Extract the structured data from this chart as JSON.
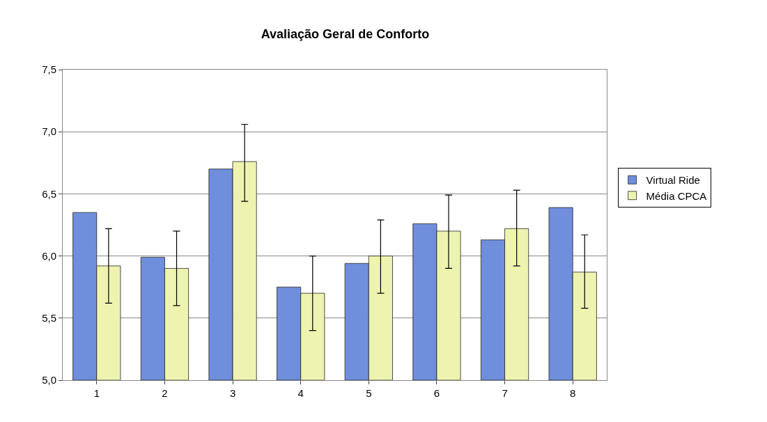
{
  "chart_data": {
    "type": "bar",
    "title": "Avaliação Geral de Conforto",
    "categories": [
      "1",
      "2",
      "3",
      "4",
      "5",
      "6",
      "7",
      "8"
    ],
    "series": [
      {
        "name": "Virtual Ride",
        "color": "#6f8fdc",
        "values": [
          6.35,
          5.99,
          6.7,
          5.75,
          5.94,
          6.26,
          6.13,
          6.39
        ]
      },
      {
        "name": "Média CPCA",
        "color": "#eef3b0",
        "values": [
          5.92,
          5.9,
          6.76,
          5.7,
          6.0,
          6.2,
          6.22,
          5.87
        ],
        "errors": [
          [
            5.62,
            6.22
          ],
          [
            5.6,
            6.2
          ],
          [
            6.44,
            7.06
          ],
          [
            5.4,
            6.0
          ],
          [
            5.7,
            6.29
          ],
          [
            5.9,
            6.49
          ],
          [
            5.92,
            6.53
          ],
          [
            5.58,
            6.17
          ]
        ]
      }
    ],
    "ylim": [
      5.0,
      7.5
    ],
    "yticks": [
      {
        "value": 5.0,
        "label": "5,0"
      },
      {
        "value": 5.5,
        "label": "5,5"
      },
      {
        "value": 6.0,
        "label": "6,0"
      },
      {
        "value": 6.5,
        "label": "6,5"
      },
      {
        "value": 7.0,
        "label": "7,0"
      },
      {
        "value": 7.5,
        "label": "7,5"
      }
    ],
    "grid": "y",
    "legend": "right"
  }
}
